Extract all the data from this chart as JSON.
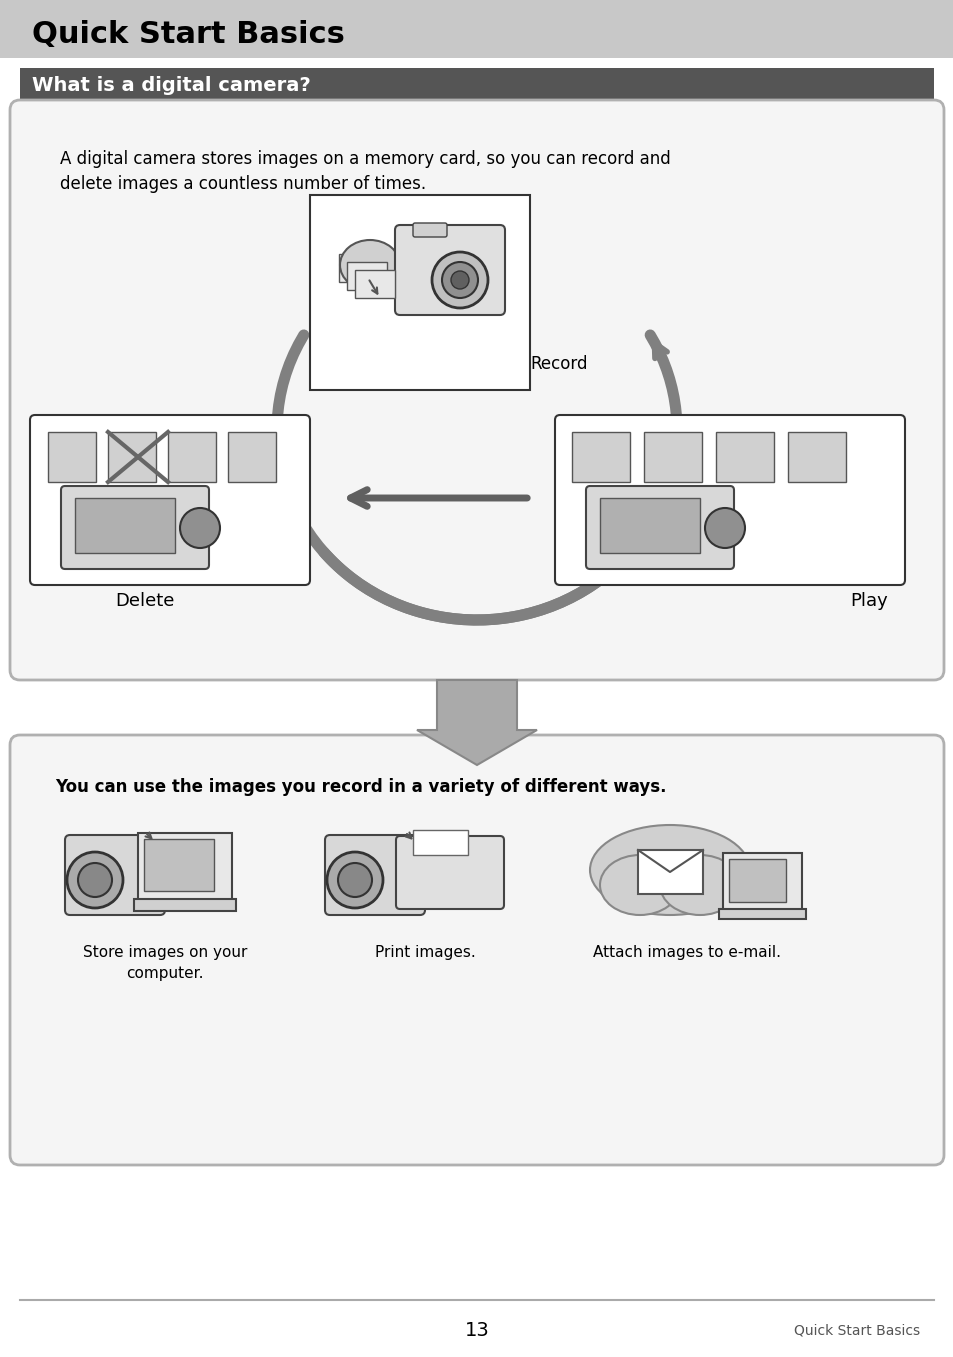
{
  "title": "Quick Start Basics",
  "title_bg": "#c8c8c8",
  "title_color": "#000000",
  "section_title": "What is a digital camera?",
  "section_bg": "#555555",
  "section_color": "#ffffff",
  "box1_text": "A digital camera stores images on a memory card, so you can record and\ndelete images a countless number of times.",
  "record_label": "Record",
  "delete_label": "Delete",
  "play_label": "Play",
  "box2_text": "You can use the images you record in a variety of different ways.",
  "store_label": "Store images on your\ncomputer.",
  "print_label": "Print images.",
  "email_label": "Attach images to e-mail.",
  "page_number": "13",
  "footer_text": "Quick Start Basics",
  "bg_color": "#ffffff",
  "box_bg": "#f5f5f5",
  "box_border": "#b0b0b0",
  "arrow_color": "#808080",
  "dark_arrow_color": "#606060"
}
